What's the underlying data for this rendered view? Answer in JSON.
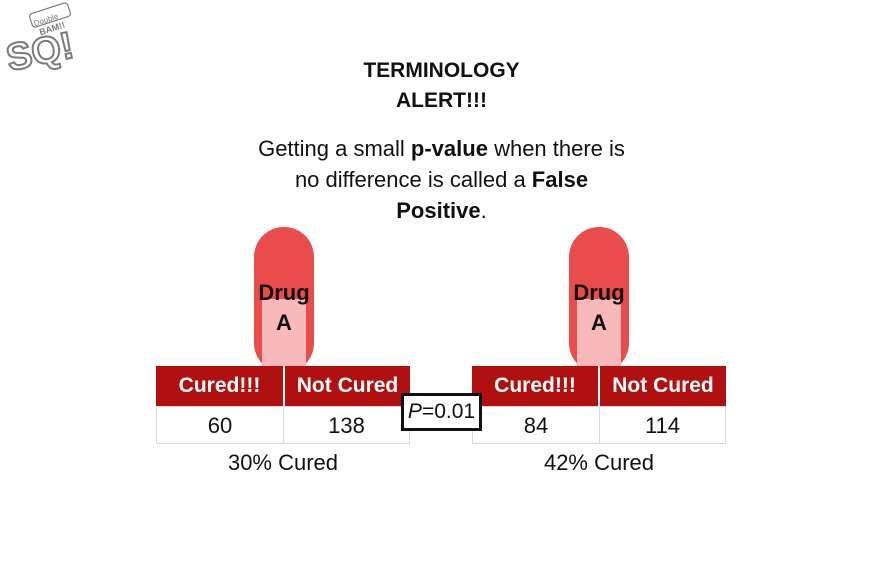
{
  "logo": {
    "text_top": "Double",
    "text_mid": "BAM!!",
    "text_big": "SQ!"
  },
  "heading": {
    "line1": "TERMINOLOGY",
    "line2": "ALERT!!!"
  },
  "statement": {
    "line1_pre": "Getting a small ",
    "line1_bold": "p-value",
    "line1_post": " when there is",
    "line2_pre": "no difference is called a ",
    "line2_bold": "False",
    "line3_bold": "Positive",
    "line3_post": "."
  },
  "left": {
    "pill_word": "Drug",
    "pill_letter": "A",
    "headers": [
      "Cured!!!",
      "Not Cured"
    ],
    "values": [
      "60",
      "138"
    ],
    "caption": "30% Cured"
  },
  "right": {
    "pill_word": "Drug",
    "pill_letter": "A",
    "headers": [
      "Cured!!!",
      "Not Cured"
    ],
    "values": [
      "84",
      "114"
    ],
    "caption": "42% Cured"
  },
  "pvalue": {
    "symbol": "P",
    "value": "=0.01"
  },
  "colors": {
    "pill": "#ea4c4c",
    "pill_window": "#f7b9b9",
    "header": "#b01010"
  }
}
